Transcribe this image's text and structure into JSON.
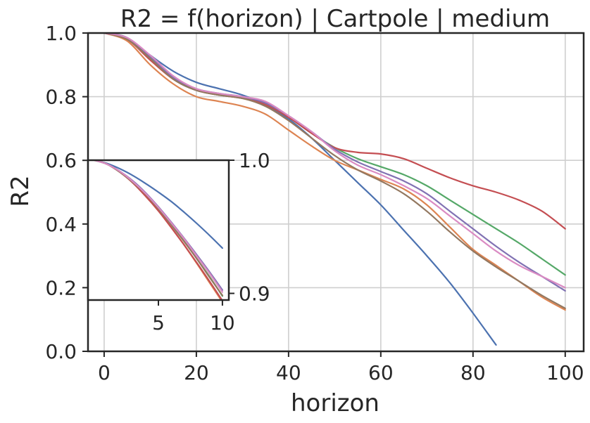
{
  "chart_data": {
    "type": "line",
    "title": "R2 = f(horizon) | Cartpole | medium",
    "xlabel": "horizon",
    "ylabel": "R2",
    "xlim": [
      -3.5,
      104
    ],
    "ylim": [
      0,
      1.0
    ],
    "grid": true,
    "x_ticks": [
      {
        "value": 0,
        "label": "0"
      },
      {
        "value": 20,
        "label": "20"
      },
      {
        "value": 40,
        "label": "40"
      },
      {
        "value": 60,
        "label": "60"
      },
      {
        "value": 80,
        "label": "80"
      },
      {
        "value": 100,
        "label": "100"
      }
    ],
    "y_ticks": [
      {
        "value": 0.0,
        "label": "0.0"
      },
      {
        "value": 0.2,
        "label": "0.2"
      },
      {
        "value": 0.4,
        "label": "0.4"
      },
      {
        "value": 0.6,
        "label": "0.6"
      },
      {
        "value": 0.8,
        "label": "0.8"
      },
      {
        "value": 1.0,
        "label": "1.0"
      }
    ],
    "x": [
      0,
      5,
      10,
      15,
      20,
      25,
      30,
      35,
      40,
      45,
      50,
      55,
      60,
      65,
      70,
      75,
      80,
      85,
      90,
      95,
      100
    ],
    "series": [
      {
        "name": "blue",
        "color": "#4c72b0",
        "values": [
          1.0,
          0.985,
          0.93,
          0.88,
          0.845,
          0.825,
          0.805,
          0.775,
          0.73,
          0.67,
          0.6,
          0.53,
          0.46,
          0.38,
          0.3,
          0.215,
          0.12,
          0.02,
          null,
          null,
          null
        ]
      },
      {
        "name": "orange",
        "color": "#dd8452",
        "values": [
          1.0,
          0.975,
          0.9,
          0.84,
          0.8,
          0.785,
          0.77,
          0.745,
          0.695,
          0.645,
          0.6,
          0.57,
          0.54,
          0.51,
          0.46,
          0.39,
          0.32,
          0.27,
          0.22,
          0.17,
          0.13
        ]
      },
      {
        "name": "green",
        "color": "#55a868",
        "values": [
          1.0,
          0.985,
          0.92,
          0.855,
          0.82,
          0.805,
          0.795,
          0.775,
          0.735,
          0.685,
          0.64,
          0.605,
          0.58,
          0.555,
          0.52,
          0.475,
          0.43,
          0.385,
          0.34,
          0.29,
          0.24
        ]
      },
      {
        "name": "red",
        "color": "#c44e52",
        "values": [
          1.0,
          0.98,
          0.915,
          0.855,
          0.82,
          0.805,
          0.795,
          0.775,
          0.735,
          0.685,
          0.64,
          0.625,
          0.62,
          0.605,
          0.575,
          0.545,
          0.52,
          0.5,
          0.475,
          0.44,
          0.385
        ]
      },
      {
        "name": "purple",
        "color": "#8172b3",
        "values": [
          1.0,
          0.985,
          0.925,
          0.86,
          0.825,
          0.81,
          0.8,
          0.78,
          0.74,
          0.69,
          0.635,
          0.595,
          0.565,
          0.535,
          0.495,
          0.44,
          0.385,
          0.33,
          0.28,
          0.235,
          0.19
        ]
      },
      {
        "name": "brown",
        "color": "#937860",
        "values": [
          1.0,
          0.98,
          0.92,
          0.855,
          0.82,
          0.805,
          0.795,
          0.77,
          0.725,
          0.67,
          0.615,
          0.57,
          0.535,
          0.495,
          0.44,
          0.375,
          0.315,
          0.265,
          0.22,
          0.175,
          0.135
        ]
      },
      {
        "name": "pink",
        "color": "#da8bc3",
        "values": [
          1.0,
          0.985,
          0.93,
          0.865,
          0.825,
          0.81,
          0.8,
          0.785,
          0.74,
          0.69,
          0.63,
          0.585,
          0.555,
          0.52,
          0.48,
          0.425,
          0.37,
          0.315,
          0.27,
          0.235,
          0.2
        ]
      }
    ],
    "inset": {
      "xlim": [
        -0.5,
        10.5
      ],
      "ylim": [
        0.895,
        1.0
      ],
      "x_ticks": [
        {
          "value": 5,
          "label": "5"
        },
        {
          "value": 10,
          "label": "10"
        }
      ],
      "y_ticks": [
        {
          "value": 0.9,
          "label": "0.9"
        },
        {
          "value": 1.0,
          "label": "1.0"
        }
      ],
      "x": [
        0,
        1,
        2,
        3,
        4,
        5,
        6,
        7,
        8,
        9,
        10
      ],
      "series": [
        {
          "name": "blue",
          "color": "#4c72b0",
          "values": [
            1.0,
            0.9975,
            0.9935,
            0.9885,
            0.9825,
            0.976,
            0.969,
            0.961,
            0.9525,
            0.9435,
            0.934
          ]
        },
        {
          "name": "orange",
          "color": "#dd8452",
          "values": [
            1.0,
            0.997,
            0.991,
            0.983,
            0.973,
            0.962,
            0.9495,
            0.9365,
            0.9225,
            0.908,
            0.8935
          ]
        },
        {
          "name": "green",
          "color": "#55a868",
          "values": [
            1.0,
            0.997,
            0.9915,
            0.984,
            0.9745,
            0.9635,
            0.952,
            0.9395,
            0.926,
            0.9125,
            0.898
          ]
        },
        {
          "name": "red",
          "color": "#c44e52",
          "values": [
            1.0,
            0.997,
            0.991,
            0.983,
            0.973,
            0.962,
            0.9495,
            0.9365,
            0.923,
            0.909,
            0.8945
          ]
        },
        {
          "name": "purple",
          "color": "#8172b3",
          "values": [
            1.0,
            0.997,
            0.9915,
            0.9845,
            0.9755,
            0.965,
            0.9535,
            0.9415,
            0.929,
            0.916,
            0.9025
          ]
        },
        {
          "name": "brown",
          "color": "#937860",
          "values": [
            1.0,
            0.997,
            0.991,
            0.9835,
            0.9745,
            0.9635,
            0.9515,
            0.939,
            0.926,
            0.912,
            0.8985
          ]
        },
        {
          "name": "pink",
          "color": "#da8bc3",
          "values": [
            1.0,
            0.997,
            0.9915,
            0.984,
            0.975,
            0.9645,
            0.953,
            0.941,
            0.928,
            0.915,
            0.901
          ]
        }
      ]
    }
  }
}
